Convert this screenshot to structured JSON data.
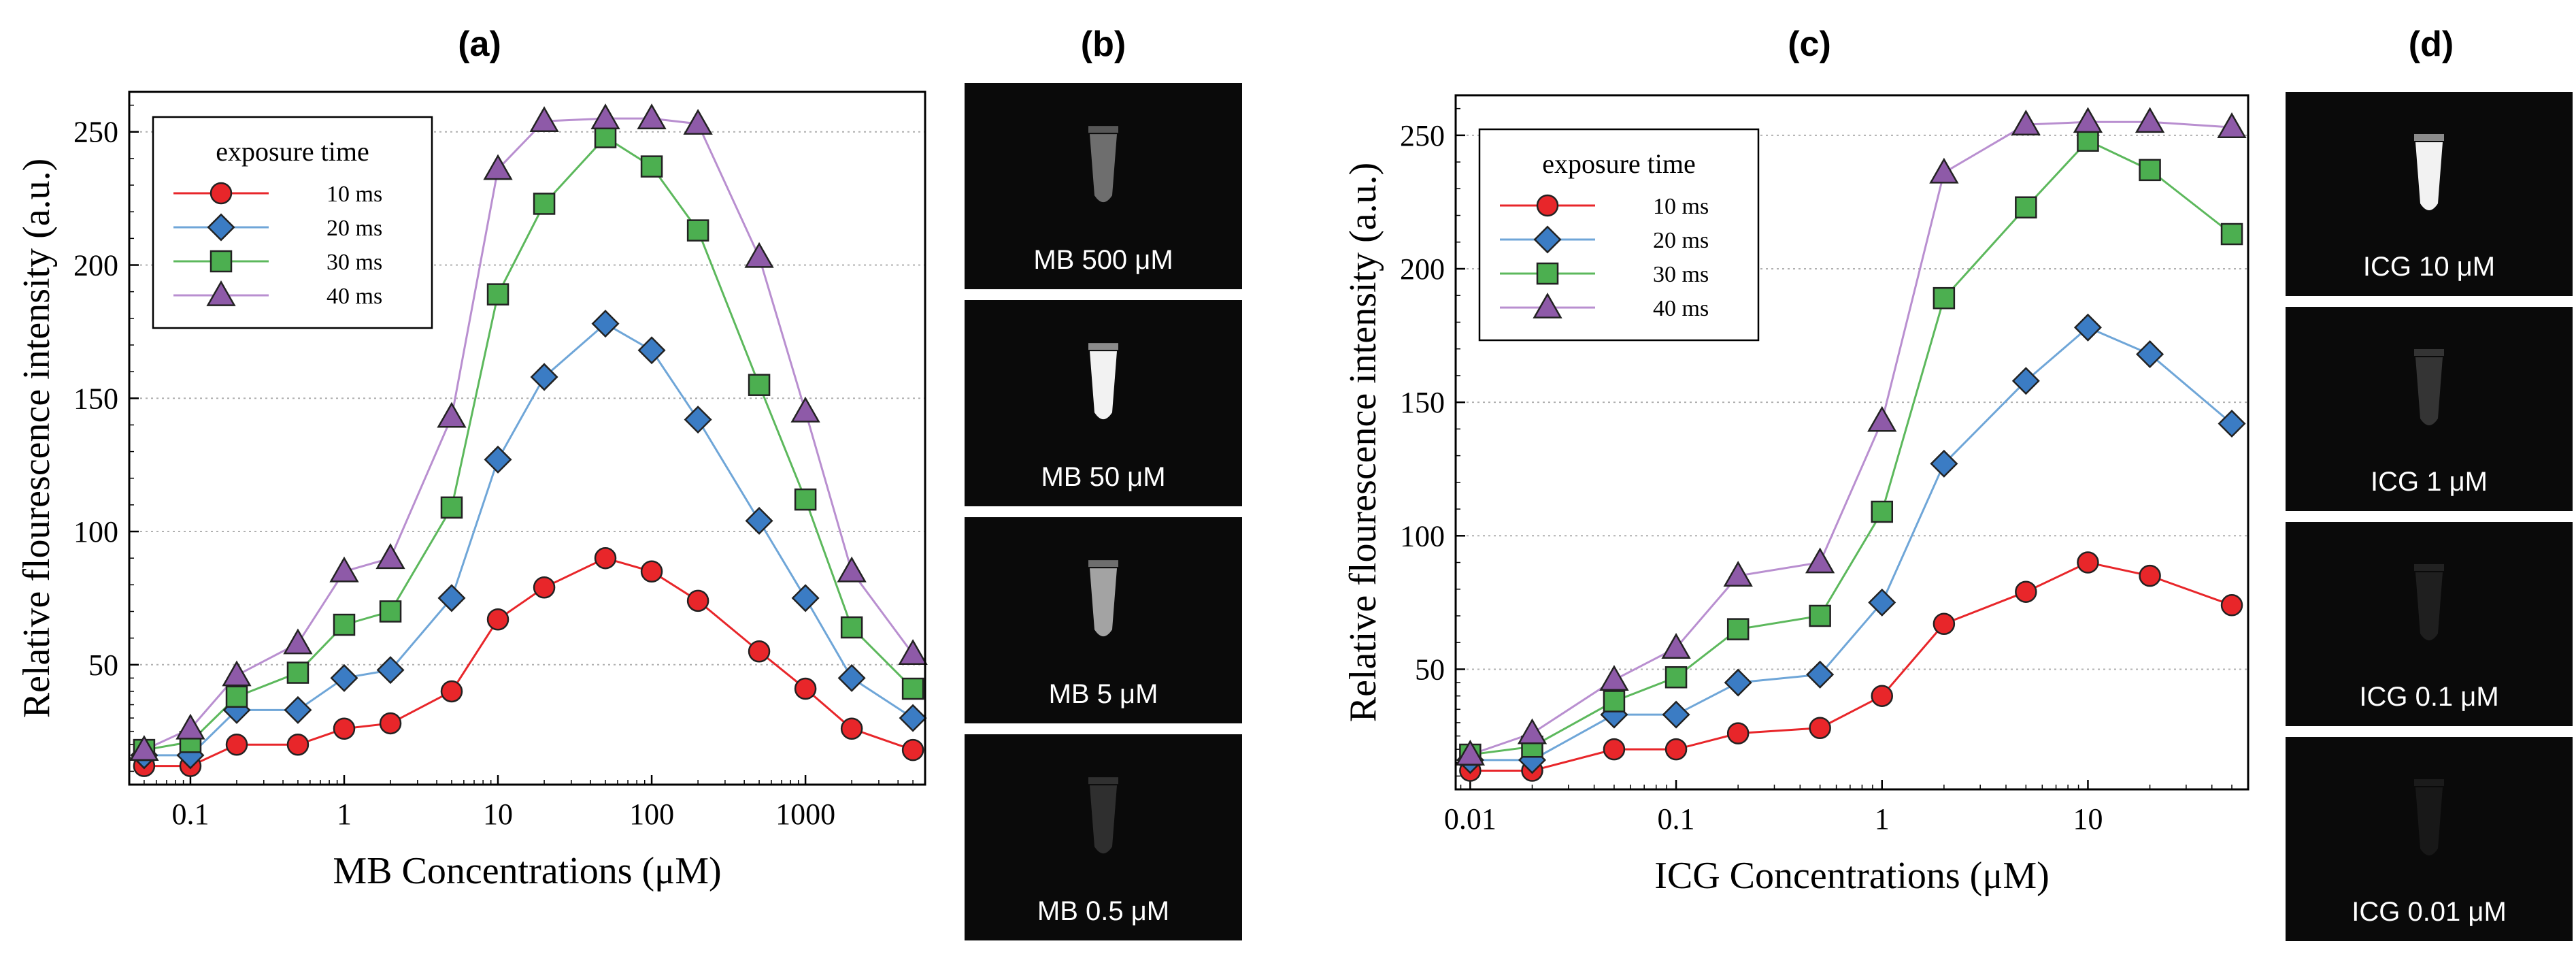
{
  "chart_data": [
    {
      "panel": "(a)",
      "type": "line",
      "xscale": "log",
      "xlabel": "MB Concentrations (μM)",
      "ylabel": "Relative flourescence intensity (a.u.)",
      "xlim": [
        0.04,
        6000
      ],
      "ylim": [
        5,
        265
      ],
      "xticks": [
        0.1,
        1,
        10,
        100,
        1000
      ],
      "xtick_labels": [
        "0.1",
        "1",
        "10",
        "100",
        "1000"
      ],
      "yticks": [
        50,
        100,
        150,
        200,
        250
      ],
      "ytick_labels": [
        "50",
        "100",
        "150",
        "200",
        "250"
      ],
      "grid": "horizontal-dotted",
      "legend_title": "exposure time",
      "legend_position": "top-left",
      "x": [
        0.05,
        0.1,
        0.2,
        0.5,
        1,
        2,
        5,
        10,
        20,
        50,
        100,
        200,
        500,
        1000,
        2000,
        5000
      ],
      "series": [
        {
          "name": "10 ms",
          "marker": "circle",
          "color": "#e8262a",
          "line_color": "#e8262a",
          "values": [
            12,
            12,
            20,
            20,
            26,
            28,
            40,
            67,
            79,
            90,
            85,
            74,
            55,
            41,
            26,
            18
          ]
        },
        {
          "name": "20 ms",
          "marker": "diamond",
          "color": "#3b7cc4",
          "line_color": "#6fa6d8",
          "values": [
            16,
            16,
            33,
            33,
            45,
            48,
            75,
            127,
            158,
            178,
            168,
            142,
            104,
            75,
            45,
            30
          ]
        },
        {
          "name": "30 ms",
          "marker": "square",
          "color": "#4caf50",
          "line_color": "#5cb85c",
          "values": [
            18,
            21,
            38,
            47,
            65,
            70,
            109,
            189,
            223,
            248,
            237,
            213,
            155,
            112,
            64,
            41
          ]
        },
        {
          "name": "40 ms",
          "marker": "triangle",
          "color": "#8e5aa8",
          "line_color": "#b98fd0",
          "values": [
            18,
            26,
            46,
            58,
            85,
            90,
            143,
            236,
            254,
            255,
            255,
            253,
            203,
            145,
            85,
            54
          ]
        }
      ]
    },
    {
      "panel": "(c)",
      "type": "line",
      "xscale": "log",
      "xlabel": "ICG Concentrations (μM)",
      "ylabel": "Relative flourescence intensity (a.u.)",
      "xlim": [
        0.0085,
        60
      ],
      "ylim": [
        5,
        265
      ],
      "xticks": [
        0.01,
        0.1,
        1,
        10
      ],
      "xtick_labels": [
        "0.01",
        "0.1",
        "1",
        "10"
      ],
      "yticks": [
        50,
        100,
        150,
        200,
        250
      ],
      "ytick_labels": [
        "50",
        "100",
        "150",
        "200",
        "250"
      ],
      "grid": "horizontal-dotted",
      "legend_title": "exposure time",
      "legend_position": "top-left",
      "x": [
        0.01,
        0.02,
        0.05,
        0.1,
        0.2,
        0.5,
        1,
        2,
        5,
        10,
        20,
        50
      ],
      "series": [
        {
          "name": "10 ms",
          "marker": "circle",
          "color": "#e8262a",
          "line_color": "#e8262a",
          "values": [
            12,
            12,
            20,
            20,
            26,
            28,
            40,
            67,
            79,
            90,
            85,
            74
          ]
        },
        {
          "name": "20 ms",
          "marker": "diamond",
          "color": "#3b7cc4",
          "line_color": "#6fa6d8",
          "values": [
            16,
            16,
            33,
            33,
            45,
            48,
            75,
            127,
            158,
            178,
            168,
            142
          ]
        },
        {
          "name": "30 ms",
          "marker": "square",
          "color": "#4caf50",
          "line_color": "#5cb85c",
          "values": [
            18,
            21,
            38,
            47,
            65,
            70,
            109,
            189,
            223,
            248,
            237,
            213
          ]
        },
        {
          "name": "40 ms",
          "marker": "triangle",
          "color": "#8e5aa8",
          "line_color": "#b98fd0",
          "values": [
            18,
            26,
            46,
            58,
            85,
            90,
            143,
            236,
            254,
            255,
            255,
            253
          ]
        }
      ]
    }
  ],
  "panels": {
    "a": "(a)",
    "b": "(b)",
    "c": "(c)",
    "d": "(d)"
  },
  "image_panels": {
    "b": [
      {
        "caption": "MB 500 μM",
        "brightness": 0.55
      },
      {
        "caption": "MB 50 μM",
        "brightness": 1.0
      },
      {
        "caption": "MB 5 μM",
        "brightness": 0.75
      },
      {
        "caption": "MB 0.5 μM",
        "brightness": 0.22
      }
    ],
    "d": [
      {
        "caption": "ICG 10 μM",
        "brightness": 1.0
      },
      {
        "caption": "ICG 1 μM",
        "brightness": 0.25
      },
      {
        "caption": "ICG 0.1 μM",
        "brightness": 0.1
      },
      {
        "caption": "ICG 0.01 μM",
        "brightness": 0.04
      }
    ]
  }
}
